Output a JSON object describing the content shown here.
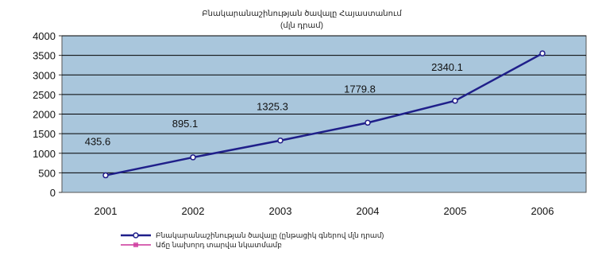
{
  "chart_data": {
    "type": "line",
    "title": "Բնակարանաշինության ծավալը Հայաստանում",
    "subtitle": "(մլն դրամ)",
    "xlabel": "",
    "ylabel": "",
    "categories": [
      "2001",
      "2002",
      "2003",
      "2004",
      "2005",
      "2006"
    ],
    "ylim": [
      0,
      4000
    ],
    "yticks": [
      "0",
      "500",
      "1000",
      "1500",
      "2000",
      "2500",
      "3000",
      "3500",
      "4000"
    ],
    "grid": true,
    "legend_position": "bottom",
    "series": [
      {
        "name": "Բնակարանաշինության ծավալը (ընթացիկ գներով մլն դրամ)",
        "color": "#1f1f8a",
        "values": [
          435.6,
          895.1,
          1325.3,
          1779.8,
          2340.1,
          3550
        ]
      },
      {
        "name": "Աճը նախորդ տարվա նկատմամբ",
        "color": "#cc3399",
        "values": [
          435.6,
          895.1,
          1325.3,
          1779.8,
          2340.1,
          3550
        ]
      }
    ],
    "data_labels": [
      "435.6",
      "895.1",
      "1325.3",
      "1779.8",
      "2340.1",
      ""
    ],
    "colors": {
      "plot_background": "#a9c6dc",
      "grid": "#000000"
    }
  }
}
